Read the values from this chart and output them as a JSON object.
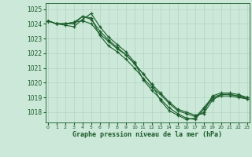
{
  "xlabel": "Graphe pression niveau de la mer (hPa)",
  "bg_color": "#cce8d8",
  "grid_color": "#aacfbe",
  "line_color": "#1a5c2a",
  "ylim": [
    1017.3,
    1025.4
  ],
  "xlim": [
    -0.3,
    23.3
  ],
  "yticks": [
    1018,
    1019,
    1020,
    1021,
    1022,
    1023,
    1024,
    1025
  ],
  "xticks": [
    0,
    1,
    2,
    3,
    4,
    5,
    6,
    7,
    8,
    9,
    10,
    11,
    12,
    13,
    14,
    15,
    16,
    17,
    18,
    19,
    20,
    21,
    22,
    23
  ],
  "series": [
    [
      1024.2,
      1024.0,
      1023.9,
      1023.8,
      1024.3,
      1024.7,
      1023.8,
      1023.1,
      1022.6,
      1022.1,
      1021.4,
      1020.2,
      1019.5,
      1018.9,
      1018.3,
      1017.9,
      1017.6,
      1017.5,
      1018.2,
      1018.9,
      1019.1,
      1019.1,
      1019.0,
      1018.9
    ],
    [
      1024.2,
      1024.0,
      1024.0,
      1024.0,
      1024.5,
      1024.3,
      1023.5,
      1022.9,
      1022.4,
      1021.9,
      1021.3,
      1020.6,
      1019.9,
      1018.8,
      1018.1,
      1017.8,
      1017.5,
      1017.6,
      1018.3,
      1019.0,
      1019.2,
      1019.2,
      1019.1,
      1019.0
    ],
    [
      1024.2,
      1024.0,
      1024.0,
      1024.1,
      1024.2,
      1024.0,
      1023.3,
      1022.8,
      1022.3,
      1021.9,
      1021.3,
      1020.6,
      1019.9,
      1019.3,
      1018.7,
      1018.2,
      1018.0,
      1017.8,
      1017.9,
      1018.8,
      1019.2,
      1019.2,
      1019.1,
      1018.9
    ],
    [
      1024.2,
      1024.0,
      1024.0,
      1024.1,
      1024.5,
      1024.4,
      1023.2,
      1022.5,
      1022.1,
      1021.6,
      1021.0,
      1020.3,
      1019.7,
      1019.2,
      1018.6,
      1018.1,
      1017.9,
      1017.7,
      1018.0,
      1019.1,
      1019.3,
      1019.3,
      1019.2,
      1019.0
    ]
  ]
}
